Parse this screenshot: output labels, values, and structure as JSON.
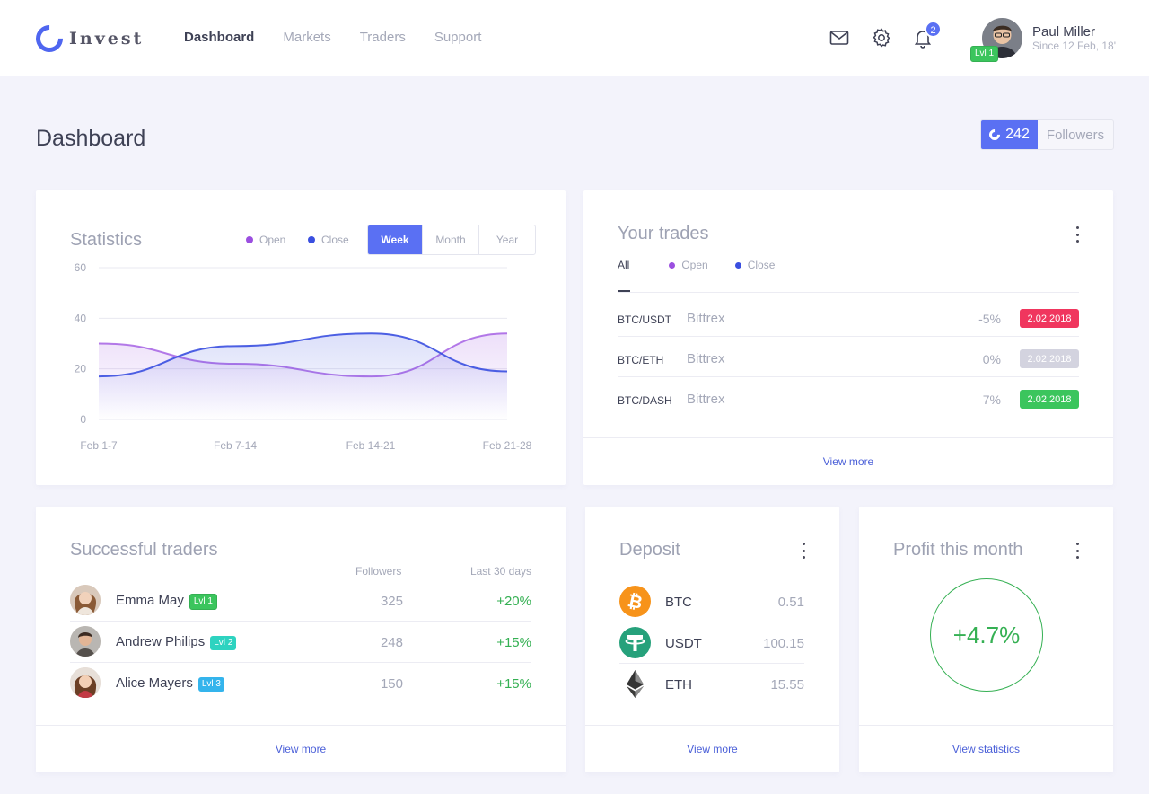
{
  "app": {
    "name": "Invest"
  },
  "nav": {
    "items": [
      {
        "label": "Dashboard",
        "active": true
      },
      {
        "label": "Markets",
        "active": false
      },
      {
        "label": "Traders",
        "active": false
      },
      {
        "label": "Support",
        "active": false
      }
    ]
  },
  "header_icons": {
    "mail": "mail-icon",
    "settings": "gear-icon",
    "notifications": "bell-icon",
    "notifications_count": "2"
  },
  "user": {
    "name": "Paul Miller",
    "since": "Since 12 Feb, 18'",
    "level": "Lvl 1"
  },
  "page": {
    "title": "Dashboard",
    "followers_count": "242",
    "followers_label": "Followers"
  },
  "statistics": {
    "title": "Statistics",
    "legend": [
      {
        "label": "Open",
        "color": "#9b4fe0"
      },
      {
        "label": "Close",
        "color": "#3a4fe0"
      }
    ],
    "periods": [
      {
        "label": "Week",
        "active": true
      },
      {
        "label": "Month",
        "active": false
      },
      {
        "label": "Year",
        "active": false
      }
    ]
  },
  "chart_data": {
    "type": "area",
    "categories": [
      "Feb 1-7",
      "Feb 7-14",
      "Feb 14-21",
      "Feb 21-28"
    ],
    "series": [
      {
        "name": "Open",
        "color": "#9b4fe0",
        "values": [
          30,
          22,
          17,
          34
        ]
      },
      {
        "name": "Close",
        "color": "#3a4fe0",
        "values": [
          17,
          29,
          34,
          19
        ]
      }
    ],
    "y_ticks": [
      0,
      20,
      40,
      60
    ],
    "ylim": [
      0,
      60
    ],
    "grid": true
  },
  "trades": {
    "title": "Your trades",
    "tabs": [
      {
        "label": "All",
        "active": true,
        "color": ""
      },
      {
        "label": "Open",
        "active": false,
        "color": "#9b4fe0"
      },
      {
        "label": "Close",
        "active": false,
        "color": "#3a4fe0"
      }
    ],
    "rows": [
      {
        "pair": "BTC/USDT",
        "exchange": "Bittrex",
        "change": "-5%",
        "date": "2.02.2018",
        "date_color": "#f0365e"
      },
      {
        "pair": "BTC/ETH",
        "exchange": "Bittrex",
        "change": "0%",
        "date": "2.02.2018",
        "date_color": "#d3d3df"
      },
      {
        "pair": "BTC/DASH",
        "exchange": "Bittrex",
        "change": "7%",
        "date": "2.02.2018",
        "date_color": "#3bc55d"
      }
    ],
    "footer_link": "View more"
  },
  "traders": {
    "title": "Successful traders",
    "columns": {
      "followers": "Followers",
      "last30": "Last 30 days"
    },
    "rows": [
      {
        "name": "Emma May",
        "level": "Lvl 1",
        "followers": "325",
        "change": "+20%"
      },
      {
        "name": "Andrew Philips",
        "level": "Lvl 2",
        "followers": "248",
        "change": "+15%"
      },
      {
        "name": "Alice Mayers",
        "level": "Lvl 3",
        "followers": "150",
        "change": "+15%"
      }
    ],
    "footer_link": "View more"
  },
  "deposit": {
    "title": "Deposit",
    "rows": [
      {
        "coin": "BTC",
        "value": "0.51",
        "icon": "bitcoin-icon"
      },
      {
        "coin": "USDT",
        "value": "100.15",
        "icon": "tether-icon"
      },
      {
        "coin": "ETH",
        "value": "15.55",
        "icon": "ethereum-icon"
      }
    ],
    "footer_link": "View more"
  },
  "profit": {
    "title": "Profit this month",
    "value": "+4.7%",
    "footer_link": "View statistics"
  }
}
